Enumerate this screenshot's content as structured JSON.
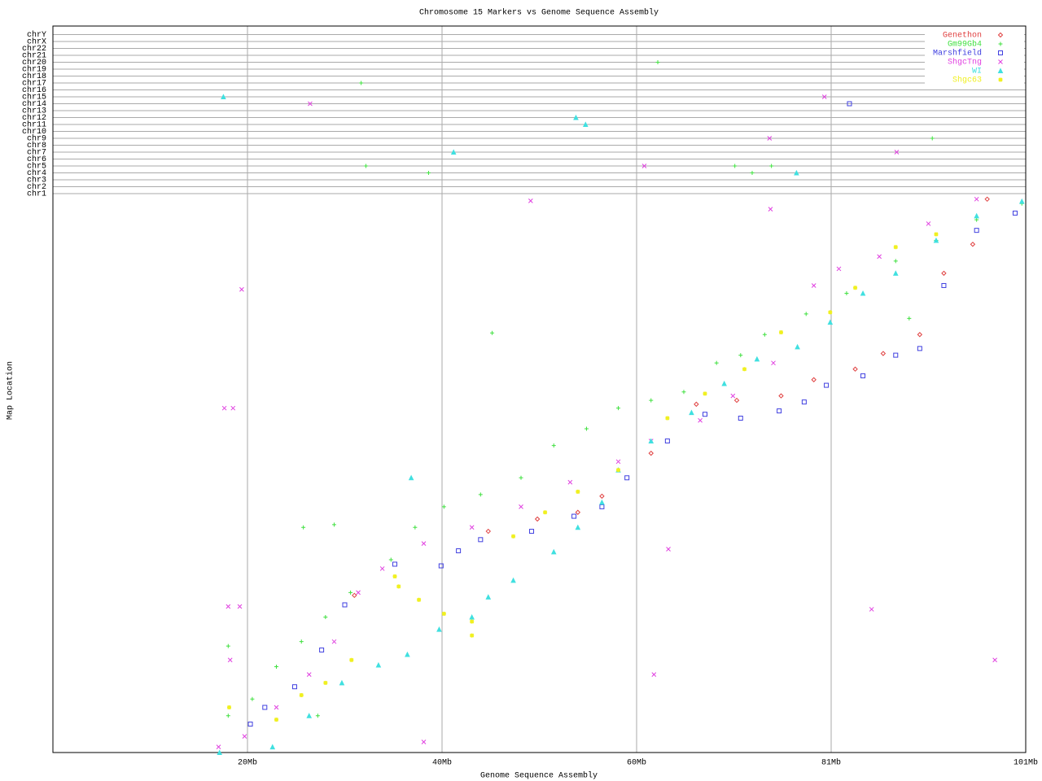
{
  "chart_data": {
    "type": "scatter",
    "title": "Chromosome 15 Markers vs Genome Sequence Assembly",
    "x_label": "Genome Sequence Assembly",
    "y_label": "Map Location",
    "xlim": [
      0,
      101
    ],
    "xticks": [
      {
        "value": 20.2,
        "label": "20Mb"
      },
      {
        "value": 40.4,
        "label": "40Mb"
      },
      {
        "value": 60.6,
        "label": "60Mb"
      },
      {
        "value": 80.8,
        "label": "81Mb"
      },
      {
        "value": 101,
        "label": "101Mb"
      }
    ],
    "ylim": [
      0,
      100
    ],
    "grid": true,
    "legend": "top-right",
    "y_categories": [
      "chr1",
      "chr2",
      "chr3",
      "chr4",
      "chr5",
      "chr6",
      "chr7",
      "chr8",
      "chr9",
      "chr10",
      "chr11",
      "chr12",
      "chr13",
      "chr14",
      "chr15",
      "chr16",
      "chr17",
      "chr18",
      "chr19",
      "chr20",
      "chr21",
      "chr22",
      "chrX",
      "chrY"
    ],
    "series": [
      {
        "name": "Genethon",
        "color": "#e04040",
        "marker": "diamond",
        "x": [
          31.3,
          45.2,
          50.3,
          54.5,
          57,
          62.1,
          66.8,
          71,
          75.6,
          79,
          83.3,
          86.2,
          90,
          92.5,
          95.5,
          97
        ],
        "y": [
          28.2,
          39.7,
          41.9,
          43.1,
          46,
          53.7,
          62.5,
          63.2,
          64,
          66.9,
          68.8,
          71.6,
          75,
          86,
          91.2,
          99.3
        ],
        "other_x": [],
        "other_chr": []
      },
      {
        "name": "Gm99Gb4",
        "color": "#40e040",
        "marker": "plus",
        "x": [
          18.2,
          20.7,
          23.2,
          25.8,
          28.3,
          30.9,
          35.1,
          37.6,
          40.6,
          44.4,
          48.6,
          52,
          55.4,
          58.7,
          62.1,
          65.5,
          68.9,
          71.4,
          73.9,
          78.2,
          82.4,
          87.5,
          91.7,
          95.9,
          100.6,
          26,
          29.2,
          45.6,
          88.9,
          18.2,
          27.5
        ],
        "y": [
          6.6,
          9.6,
          15.4,
          19.9,
          24.3,
          28.7,
          34.6,
          40.4,
          44.1,
          46.3,
          49.3,
          55.1,
          58.1,
          61.8,
          63.2,
          64.7,
          69.9,
          71.3,
          75,
          78.7,
          82.4,
          88.2,
          91.9,
          95.6,
          98.5,
          40.4,
          40.9,
          75.3,
          77.9,
          19.1,
          6.6
        ],
        "other_x": [
          62.8,
          32,
          32.5,
          39,
          70.8,
          72.6,
          74.6,
          91.3
        ],
        "other_chr": [
          "chr20",
          "chr17",
          "chr5",
          "chr4",
          "chr5",
          "chr4",
          "chr5",
          "chr9"
        ]
      },
      {
        "name": "Marshfield",
        "color": "#4040e0",
        "marker": "square",
        "x": [
          20.5,
          22,
          25.1,
          27.9,
          30.3,
          35.5,
          40.3,
          42.1,
          44.4,
          49.7,
          54.1,
          57,
          59.6,
          63.8,
          67.7,
          71.4,
          75.4,
          78,
          80.3,
          84.1,
          87.5,
          90,
          92.5,
          95.9,
          99.9
        ],
        "y": [
          5.1,
          8.1,
          11.8,
          18.4,
          26.5,
          33.8,
          33.5,
          36.2,
          38.2,
          39.7,
          42.4,
          44.1,
          49.3,
          55.9,
          60.7,
          60,
          61.3,
          62.9,
          65.9,
          67.6,
          71.3,
          72.5,
          83.8,
          93.7,
          96.8
        ],
        "other_x": [
          82.7
        ],
        "other_chr": [
          "chr14"
        ]
      },
      {
        "name": "ShgcTng",
        "color": "#e040e0",
        "marker": "cross",
        "x": [
          17.2,
          19.9,
          23.2,
          26.6,
          29.2,
          31.7,
          34.2,
          38.5,
          43.5,
          48.6,
          53.7,
          58.7,
          62.1,
          67.2,
          70.6,
          74.8,
          79,
          81.6,
          85.8,
          90.9,
          95.9,
          19.6,
          17.8,
          18.7,
          49.6,
          74.5,
          18.2,
          19.4,
          38.5,
          62.4,
          63.9,
          85,
          97.8,
          18.4
        ],
        "y": [
          1,
          2.9,
          8.1,
          14,
          19.9,
          28.7,
          33,
          37.5,
          40.4,
          44.1,
          48.5,
          52.2,
          55.9,
          59.6,
          64,
          69.9,
          83.8,
          86.8,
          89,
          94.9,
          99.3,
          83.1,
          61.8,
          61.8,
          99,
          97.5,
          26.2,
          26.2,
          1.9,
          14,
          36.5,
          25.7,
          16.6,
          16.6
        ],
        "other_x": [
          26.7,
          80.1,
          74.4,
          61.4,
          87.6
        ],
        "other_chr": [
          "chr14",
          "chr15",
          "chr9",
          "chr5",
          "chr7"
        ]
      },
      {
        "name": "WI",
        "color": "#40e0e0",
        "marker": "triangle",
        "x": [
          17.3,
          22.8,
          26.6,
          30,
          33.8,
          36.8,
          40.1,
          43.5,
          45.2,
          47.8,
          52,
          54.5,
          57,
          58.7,
          62.1,
          66.3,
          69.7,
          73.1,
          77.3,
          80.7,
          84.1,
          87.5,
          91.7,
          95.9,
          100.6,
          37.2
        ],
        "y": [
          0,
          1,
          6.6,
          12.5,
          15.7,
          17.6,
          22.1,
          24.3,
          27.9,
          30.9,
          36,
          40.4,
          44.9,
          50.7,
          55.9,
          61,
          66.2,
          70.6,
          72.8,
          77.2,
          82.4,
          86,
          91.9,
          96.3,
          98.9,
          49.3
        ],
        "other_x": [
          17.7,
          54.3,
          55.3,
          41.6,
          77.2
        ],
        "other_chr": [
          "chr15",
          "chr12",
          "chr11",
          "chr7",
          "chr4"
        ]
      },
      {
        "name": "Shgc63",
        "color": "#f0f020",
        "marker": "star",
        "x": [
          18.3,
          23.2,
          25.8,
          28.3,
          31,
          35.5,
          35.9,
          38,
          40.6,
          43.5,
          43.5,
          47.8,
          51.1,
          54.5,
          58.7,
          63.8,
          67.7,
          71.8,
          75.6,
          80.7,
          83.3,
          87.5,
          91.7
        ],
        "y": [
          8.1,
          5.9,
          10.3,
          12.5,
          16.6,
          31.6,
          29.8,
          27.4,
          24.9,
          21,
          23.5,
          38.8,
          43.1,
          46.8,
          50.7,
          60,
          64.4,
          68.8,
          75.4,
          79,
          83.4,
          90.7,
          93
        ],
        "other_x": [],
        "other_chr": []
      }
    ]
  }
}
